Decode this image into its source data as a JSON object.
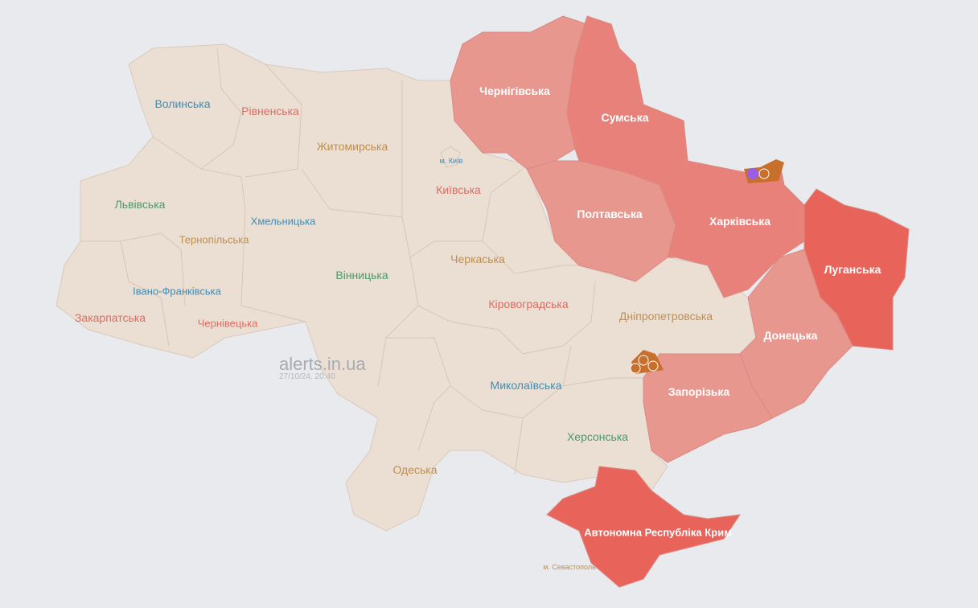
{
  "watermark": {
    "site": "alerts.in.ua",
    "timestamp": "27/10/24, 20:40"
  },
  "colors": {
    "background": "#e9eaee",
    "no_alert": "#ebdfd4",
    "alert_light": "#e8978f",
    "alert_medium": "#e8817a",
    "alert_strong": "#e8645a",
    "threat_marker": "#c86f2c",
    "drone_marker": "#9b5de5"
  },
  "regions": [
    {
      "name": "Волинська",
      "alert": false
    },
    {
      "name": "Рівненська",
      "alert": false
    },
    {
      "name": "Житомирська",
      "alert": false
    },
    {
      "name": "Київська",
      "alert": false
    },
    {
      "name": "м. Київ",
      "alert": false
    },
    {
      "name": "Чернігівська",
      "alert": true
    },
    {
      "name": "Сумська",
      "alert": true
    },
    {
      "name": "Львівська",
      "alert": false
    },
    {
      "name": "Хмельницька",
      "alert": false
    },
    {
      "name": "Тернопільська",
      "alert": false
    },
    {
      "name": "Полтавська",
      "alert": true
    },
    {
      "name": "Харківська",
      "alert": true
    },
    {
      "name": "Луганська",
      "alert": true
    },
    {
      "name": "Черкаська",
      "alert": false
    },
    {
      "name": "Вінницька",
      "alert": false
    },
    {
      "name": "Івано-Франківська",
      "alert": false
    },
    {
      "name": "Закарпатська",
      "alert": false
    },
    {
      "name": "Чернівецька",
      "alert": false
    },
    {
      "name": "Кіровоградська",
      "alert": false
    },
    {
      "name": "Дніпропетровська",
      "alert": false
    },
    {
      "name": "Донецька",
      "alert": true
    },
    {
      "name": "Миколаївська",
      "alert": false
    },
    {
      "name": "Запорізька",
      "alert": true
    },
    {
      "name": "Херсонська",
      "alert": false
    },
    {
      "name": "Одеська",
      "alert": false
    },
    {
      "name": "Автономна Республіка Крим",
      "alert": true
    },
    {
      "name": "м. Севастополь",
      "alert": true
    }
  ],
  "markers": [
    {
      "region": "Харківська",
      "icons": [
        "drone-icon",
        "artillery-icon"
      ]
    },
    {
      "region": "Дніпропетровська",
      "icons": [
        "artillery-icon",
        "artillery-icon",
        "artillery-icon"
      ]
    }
  ]
}
